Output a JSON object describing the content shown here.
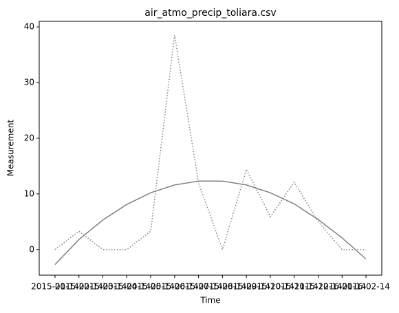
{
  "chart_data": {
    "type": "line",
    "title": "air_atmo_precip_toliara.csv",
    "xlabel": "Time",
    "ylabel": "Measurement",
    "x": [
      "2015-01-14",
      "2015-02-14",
      "2015-03-14",
      "2015-04-14",
      "2015-05-14",
      "2015-06-14",
      "2015-07-14",
      "2015-08-14",
      "2015-09-14",
      "2015-10-14",
      "2015-11-14",
      "2015-12-14",
      "2016-01-14",
      "2016-02-14"
    ],
    "series": [
      {
        "color": "#808080",
        "linestyle": "solid",
        "values": [
          -2.7,
          1.8,
          5.3,
          8.1,
          10.2,
          11.6,
          12.3,
          12.3,
          11.6,
          10.2,
          8.2,
          5.4,
          2.1,
          -1.7
        ]
      },
      {
        "color": "#808080",
        "linestyle": "dotted",
        "values": [
          0,
          3.3,
          0,
          0,
          3.3,
          38.5,
          12,
          0,
          14.4,
          5.9,
          12.1,
          5,
          0,
          0
        ]
      }
    ],
    "ylim": [
      -4.6,
      41.0
    ],
    "yticks": [
      0,
      10,
      20,
      30,
      40
    ],
    "grid": false
  }
}
